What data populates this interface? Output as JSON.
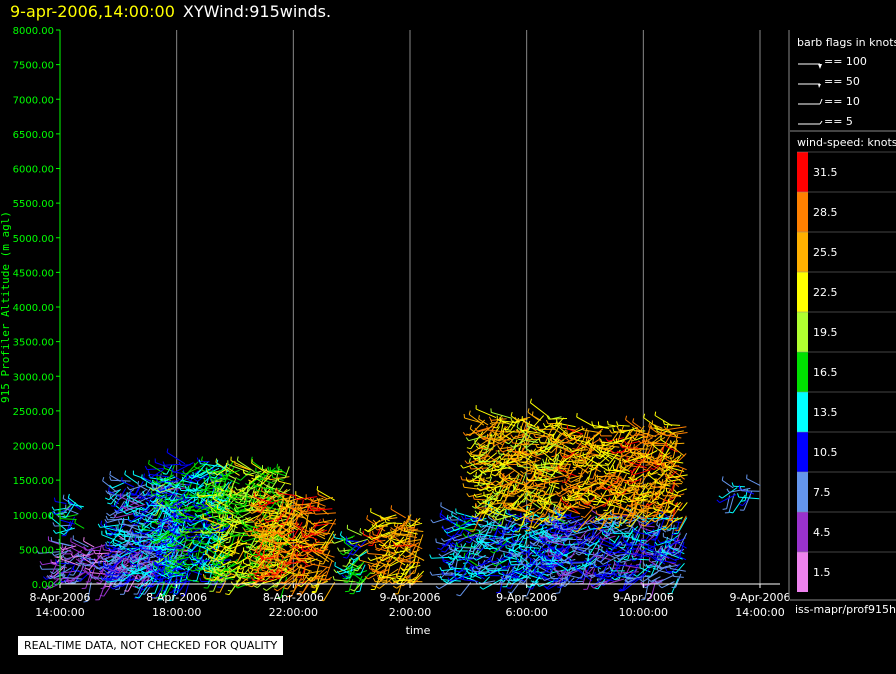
{
  "title": {
    "time": "9-apr-2006,14:00:00",
    "name": "XYWind:915winds."
  },
  "quality_note": "REAL-TIME DATA, NOT CHECKED FOR QUALITY",
  "source_label": "iss-mapr/prof915h",
  "barb_legend": {
    "title": "barb flags in knots",
    "items": [
      "== 100",
      "== 50",
      "== 10",
      "== 5"
    ]
  },
  "colorbar": {
    "title": "wind-speed: knots",
    "entries": [
      {
        "label": "31.5",
        "color": "#ff0000"
      },
      {
        "label": "28.5",
        "color": "#ff8000"
      },
      {
        "label": "25.5",
        "color": "#ffb000"
      },
      {
        "label": "22.5",
        "color": "#ffff00"
      },
      {
        "label": "19.5",
        "color": "#b0ff30"
      },
      {
        "label": "16.5",
        "color": "#00e000"
      },
      {
        "label": "13.5",
        "color": "#00ffff"
      },
      {
        "label": "10.5",
        "color": "#0000ff"
      },
      {
        "label": "7.5",
        "color": "#6495ed"
      },
      {
        "label": "4.5",
        "color": "#9932cc"
      },
      {
        "label": "1.5",
        "color": "#ee82ee"
      }
    ]
  },
  "chart_data": {
    "type": "scatter",
    "description_kind": "wind barb time-height plot",
    "xlabel": "time",
    "ylabel": "915 Profiler Altitude (m agl)",
    "ylim": [
      0,
      8000
    ],
    "yticks": [
      "0.00",
      "500.00",
      "1000.00",
      "1500.00",
      "2000.00",
      "2500.00",
      "3000.00",
      "3500.00",
      "4000.00",
      "4500.00",
      "5000.00",
      "5500.00",
      "6000.00",
      "6500.00",
      "7000.00",
      "7500.00",
      "8000.00"
    ],
    "xlim_hours": [
      0,
      24
    ],
    "xticks": [
      {
        "date": "8-Apr-2006",
        "time": "14:00:00"
      },
      {
        "date": "8-Apr-2006",
        "time": "18:00:00"
      },
      {
        "date": "8-Apr-2006",
        "time": "22:00:00"
      },
      {
        "date": "9-Apr-2006",
        "time": "2:00:00"
      },
      {
        "date": "9-Apr-2006",
        "time": "6:00:00"
      },
      {
        "date": "9-Apr-2006",
        "time": "10:00:00"
      },
      {
        "date": "9-Apr-2006",
        "time": "14:00:00"
      }
    ],
    "vertical_gridlines": true,
    "data_regions": [
      {
        "start_hour": 0.0,
        "end_hour": 3.5,
        "max_alt": 600,
        "speed": 6
      },
      {
        "start_hour": 0.2,
        "end_hour": 0.8,
        "min_alt": 800,
        "max_alt": 1200,
        "speed": 11
      },
      {
        "start_hour": 2.0,
        "end_hour": 4.5,
        "max_alt": 1500,
        "speed": 10
      },
      {
        "start_hour": 3.5,
        "end_hour": 6.0,
        "max_alt": 1800,
        "speed": 14
      },
      {
        "start_hour": 5.5,
        "end_hour": 8.0,
        "max_alt": 1700,
        "speed": 20
      },
      {
        "start_hour": 7.0,
        "end_hour": 9.5,
        "max_alt": 1300,
        "speed": 27
      },
      {
        "start_hour": 10.0,
        "end_hour": 10.6,
        "max_alt": 700,
        "speed": 16
      },
      {
        "start_hour": 11.0,
        "end_hour": 12.5,
        "max_alt": 1000,
        "speed": 26
      },
      {
        "start_hour": 13.5,
        "end_hour": 17.5,
        "max_alt": 1000,
        "speed": 11
      },
      {
        "start_hour": 14.5,
        "end_hour": 17.5,
        "min_alt": 1000,
        "max_alt": 2450,
        "speed": 24
      },
      {
        "start_hour": 17.0,
        "end_hour": 21.5,
        "max_alt": 1000,
        "speed": 9
      },
      {
        "start_hour": 17.5,
        "end_hour": 21.5,
        "min_alt": 1000,
        "max_alt": 2300,
        "speed": 26
      },
      {
        "start_hour": 23.0,
        "end_hour": 24.0,
        "min_alt": 1250,
        "max_alt": 1400,
        "speed": 10
      }
    ]
  }
}
